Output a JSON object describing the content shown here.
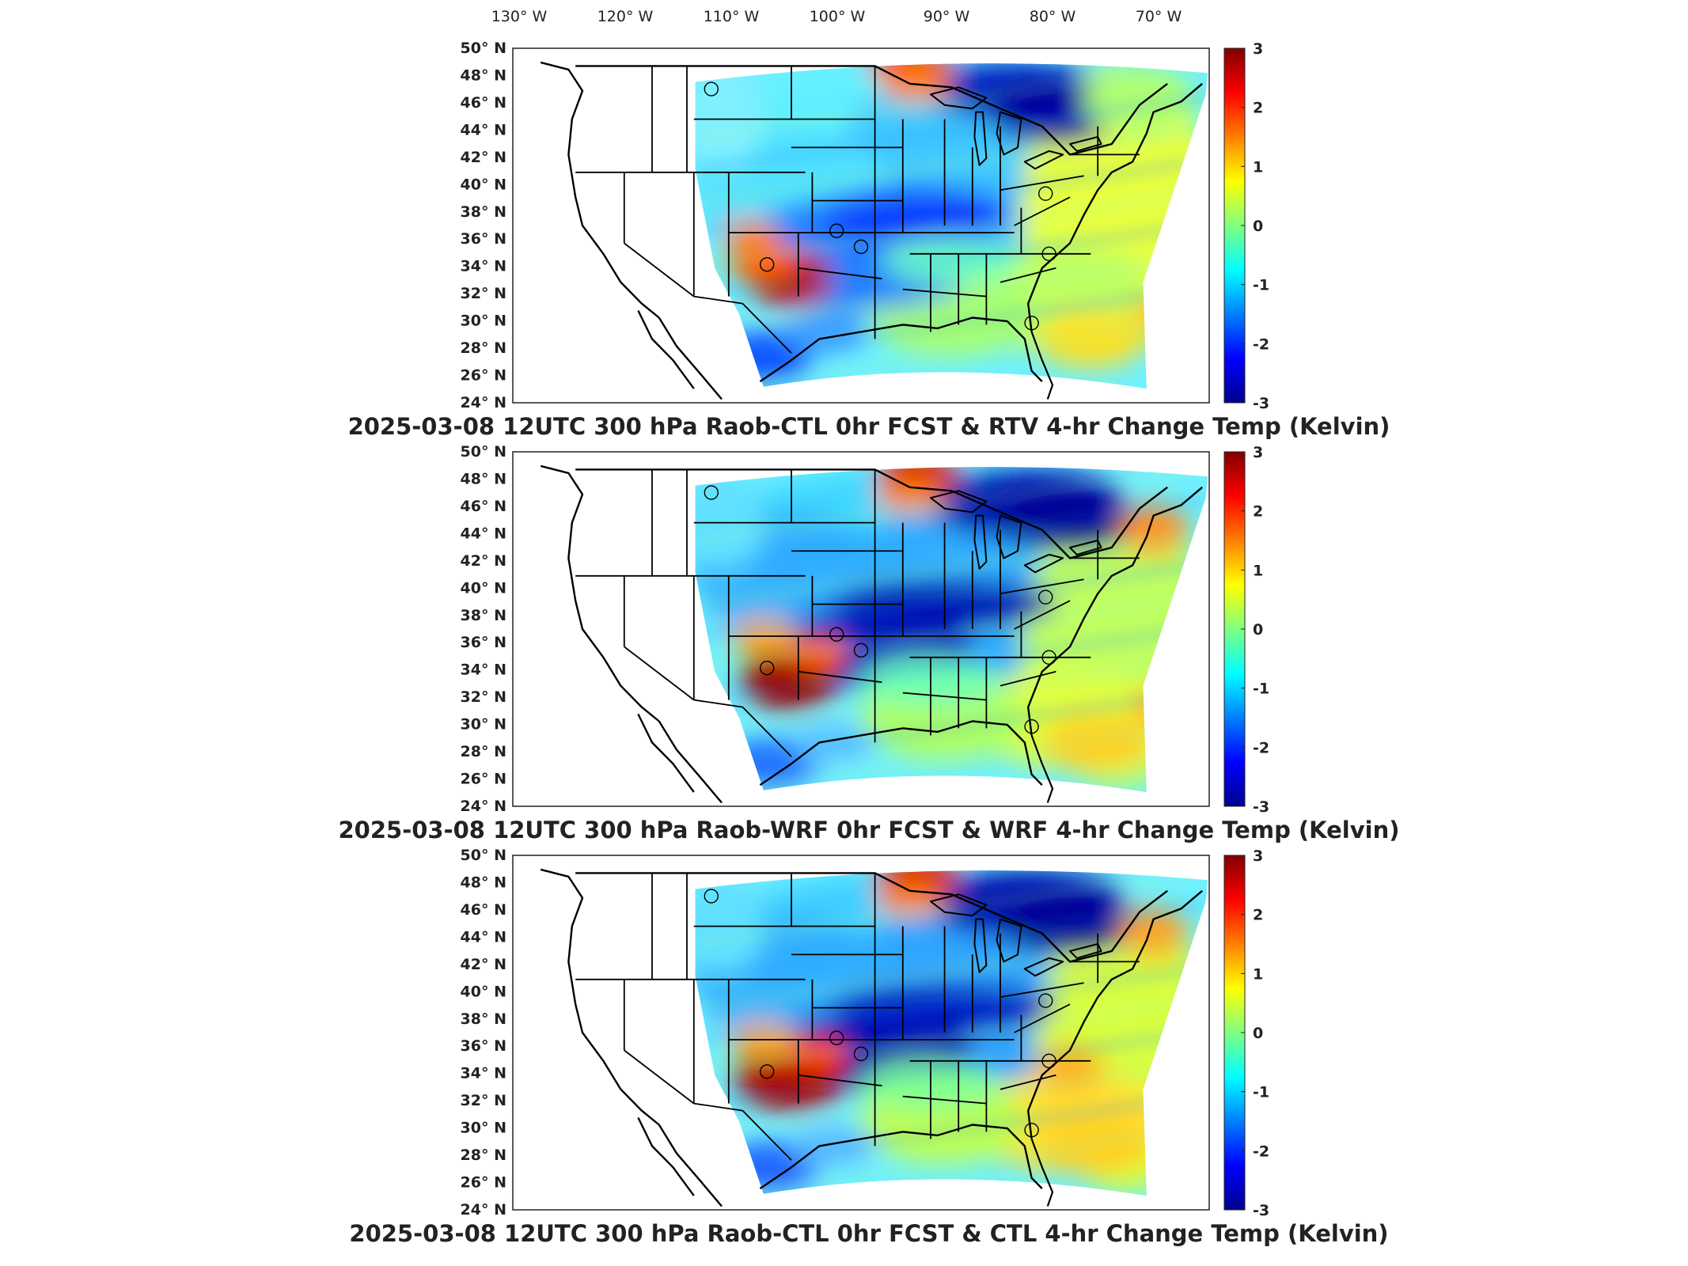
{
  "lon_axis_labels": [
    "130",
    "120",
    "110",
    "100",
    "90",
    "80",
    "70"
  ],
  "lon_suffix": "W",
  "lat_axis_labels": [
    "50",
    "48",
    "46",
    "44",
    "42",
    "40",
    "38",
    "36",
    "34",
    "32",
    "30",
    "28",
    "26",
    "24"
  ],
  "lat_suffix": "N",
  "colorbar": {
    "min": -3,
    "max": 3,
    "tick_labels": [
      "3",
      "2",
      "1",
      "0",
      "-1",
      "-2",
      "-3"
    ],
    "colormap": "jet"
  },
  "panels": [
    {
      "title": "2025-03-08 12UTC 300 hPa Raob-CTL 0hr FCST & RTV 4-hr Change Temp (Kelvin)"
    },
    {
      "title": "2025-03-08 12UTC 300 hPa Raob-WRF 0hr FCST & WRF 4-hr Change Temp (Kelvin)"
    },
    {
      "title": "2025-03-08 12UTC 300 hPa Raob-CTL 0hr FCST & CTL 4-hr Change Temp (Kelvin)"
    }
  ],
  "colors": {
    "jet_dark_blue": "#00008f",
    "jet_blue": "#0050ff",
    "jet_cyan": "#20d0ff",
    "jet_green": "#80ff80",
    "jet_yellow": "#ffff00",
    "jet_orange": "#ff8000",
    "jet_dark_red": "#800000"
  }
}
